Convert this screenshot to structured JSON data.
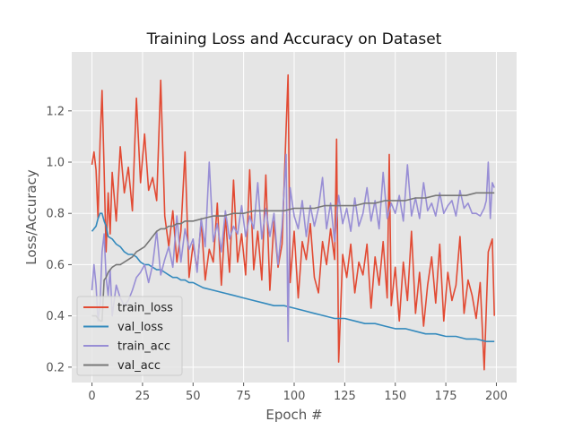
{
  "colors": {
    "background": "#ffffff",
    "plot_background": "#e5e5e5",
    "grid": "#ffffff",
    "train_loss": "#e24a33",
    "val_loss": "#348abd",
    "train_acc": "#988ed5",
    "val_acc": "#777777"
  },
  "chart_data": {
    "type": "line",
    "title": "Training Loss and Accuracy on Dataset",
    "xlabel": "Epoch #",
    "ylabel": "Loss/Accuracy",
    "xlim": [
      -10,
      210
    ],
    "ylim": [
      0.14,
      1.43
    ],
    "xticks": [
      0,
      25,
      50,
      75,
      100,
      125,
      150,
      175,
      200
    ],
    "yticks": [
      0.2,
      0.4,
      0.6,
      0.8,
      1.0,
      1.2
    ],
    "ytick_labels": [
      "0.2",
      "0.4",
      "0.6",
      "0.8",
      "1.0",
      "1.2"
    ],
    "grid": true,
    "legend_position": "lower-left",
    "series": [
      {
        "name": "train_loss",
        "color": "#e24a33",
        "x": [
          0,
          1,
          2,
          3,
          4,
          5,
          6,
          7,
          8,
          9,
          10,
          12,
          14,
          16,
          18,
          20,
          22,
          24,
          26,
          28,
          30,
          32,
          34,
          36,
          38,
          40,
          42,
          44,
          46,
          48,
          50,
          52,
          54,
          56,
          58,
          60,
          62,
          64,
          66,
          68,
          70,
          72,
          74,
          76,
          78,
          80,
          82,
          84,
          86,
          88,
          90,
          92,
          94,
          96,
          97,
          98,
          100,
          102,
          104,
          106,
          108,
          110,
          112,
          114,
          116,
          118,
          120,
          121,
          122,
          124,
          126,
          128,
          130,
          132,
          134,
          136,
          138,
          140,
          142,
          144,
          146,
          147,
          148,
          150,
          152,
          154,
          156,
          158,
          160,
          162,
          164,
          166,
          168,
          170,
          172,
          174,
          176,
          178,
          180,
          182,
          184,
          186,
          188,
          190,
          192,
          194,
          196,
          198,
          199
        ],
        "y": [
          0.99,
          1.04,
          0.97,
          0.78,
          1.08,
          1.28,
          0.97,
          0.65,
          0.88,
          0.72,
          0.96,
          0.77,
          1.06,
          0.88,
          0.98,
          0.81,
          1.25,
          0.92,
          1.11,
          0.89,
          0.94,
          0.85,
          1.32,
          0.79,
          0.67,
          0.81,
          0.61,
          0.73,
          1.04,
          0.55,
          0.68,
          0.58,
          0.77,
          0.54,
          0.66,
          0.61,
          0.84,
          0.52,
          0.79,
          0.57,
          0.93,
          0.61,
          0.72,
          0.56,
          0.97,
          0.58,
          0.73,
          0.54,
          0.95,
          0.5,
          0.77,
          0.59,
          0.68,
          1.13,
          1.34,
          0.53,
          0.73,
          0.47,
          0.69,
          0.62,
          0.76,
          0.55,
          0.49,
          0.69,
          0.6,
          0.74,
          0.62,
          1.09,
          0.22,
          0.64,
          0.55,
          0.68,
          0.49,
          0.61,
          0.56,
          0.68,
          0.43,
          0.63,
          0.52,
          0.69,
          0.47,
          1.03,
          0.44,
          0.59,
          0.38,
          0.61,
          0.46,
          0.73,
          0.41,
          0.57,
          0.36,
          0.52,
          0.63,
          0.45,
          0.68,
          0.38,
          0.57,
          0.46,
          0.52,
          0.71,
          0.41,
          0.54,
          0.48,
          0.39,
          0.53,
          0.19,
          0.65,
          0.7,
          0.4
        ]
      },
      {
        "name": "val_loss",
        "color": "#348abd",
        "x": [
          0,
          2,
          3,
          4,
          5,
          6,
          7,
          8,
          10,
          12,
          14,
          16,
          18,
          20,
          22,
          24,
          26,
          28,
          30,
          32,
          34,
          36,
          38,
          40,
          42,
          44,
          46,
          48,
          50,
          55,
          60,
          65,
          70,
          75,
          80,
          85,
          90,
          95,
          100,
          105,
          110,
          115,
          120,
          125,
          130,
          135,
          140,
          145,
          150,
          155,
          160,
          165,
          170,
          175,
          180,
          185,
          190,
          195,
          199
        ],
        "y": [
          0.73,
          0.75,
          0.78,
          0.8,
          0.8,
          0.77,
          0.75,
          0.71,
          0.7,
          0.68,
          0.67,
          0.65,
          0.64,
          0.64,
          0.63,
          0.61,
          0.6,
          0.6,
          0.59,
          0.58,
          0.58,
          0.57,
          0.56,
          0.55,
          0.55,
          0.54,
          0.54,
          0.53,
          0.53,
          0.51,
          0.5,
          0.49,
          0.48,
          0.47,
          0.46,
          0.45,
          0.44,
          0.44,
          0.43,
          0.42,
          0.41,
          0.4,
          0.39,
          0.39,
          0.38,
          0.37,
          0.37,
          0.36,
          0.35,
          0.35,
          0.34,
          0.33,
          0.33,
          0.32,
          0.32,
          0.31,
          0.31,
          0.3,
          0.3
        ]
      },
      {
        "name": "train_acc",
        "color": "#988ed5",
        "x": [
          0,
          1,
          2,
          3,
          4,
          5,
          6,
          7,
          8,
          9,
          10,
          12,
          14,
          16,
          18,
          20,
          22,
          24,
          26,
          28,
          30,
          32,
          34,
          36,
          38,
          40,
          42,
          44,
          46,
          48,
          50,
          52,
          54,
          56,
          58,
          60,
          62,
          64,
          66,
          68,
          70,
          72,
          74,
          76,
          78,
          80,
          82,
          84,
          86,
          88,
          90,
          92,
          94,
          96,
          97,
          98,
          100,
          102,
          104,
          106,
          108,
          110,
          112,
          114,
          116,
          118,
          120,
          122,
          124,
          126,
          128,
          130,
          132,
          134,
          136,
          138,
          140,
          142,
          144,
          146,
          148,
          150,
          152,
          154,
          156,
          158,
          160,
          162,
          164,
          166,
          168,
          170,
          172,
          174,
          176,
          178,
          180,
          182,
          184,
          186,
          188,
          190,
          192,
          194,
          195,
          196,
          197,
          198,
          199
        ],
        "y": [
          0.5,
          0.6,
          0.52,
          0.38,
          0.45,
          0.65,
          0.72,
          0.55,
          0.48,
          0.58,
          0.4,
          0.52,
          0.47,
          0.44,
          0.46,
          0.5,
          0.55,
          0.57,
          0.6,
          0.53,
          0.6,
          0.73,
          0.56,
          0.62,
          0.67,
          0.59,
          0.79,
          0.61,
          0.74,
          0.66,
          0.7,
          0.57,
          0.78,
          0.67,
          1.0,
          0.69,
          0.76,
          0.65,
          0.81,
          0.7,
          0.75,
          0.72,
          0.83,
          0.71,
          0.79,
          0.74,
          0.92,
          0.7,
          0.82,
          0.71,
          0.8,
          0.6,
          0.75,
          1.03,
          0.3,
          0.9,
          0.79,
          0.74,
          0.85,
          0.71,
          0.83,
          0.75,
          0.82,
          0.94,
          0.74,
          0.84,
          0.69,
          0.87,
          0.76,
          0.82,
          0.73,
          0.86,
          0.75,
          0.8,
          0.9,
          0.77,
          0.85,
          0.74,
          0.96,
          0.78,
          0.84,
          0.8,
          0.87,
          0.77,
          0.99,
          0.79,
          0.86,
          0.78,
          0.92,
          0.81,
          0.84,
          0.79,
          0.88,
          0.8,
          0.83,
          0.85,
          0.79,
          0.89,
          0.82,
          0.84,
          0.8,
          0.8,
          0.79,
          0.82,
          0.85,
          1.0,
          0.78,
          0.92,
          0.9
        ]
      },
      {
        "name": "val_acc",
        "color": "#777777",
        "x": [
          0,
          2,
          4,
          5,
          6,
          7,
          8,
          10,
          12,
          14,
          16,
          18,
          20,
          22,
          24,
          26,
          28,
          30,
          32,
          34,
          36,
          38,
          40,
          42,
          44,
          46,
          48,
          50,
          55,
          60,
          65,
          70,
          75,
          80,
          85,
          90,
          95,
          100,
          105,
          110,
          115,
          120,
          125,
          130,
          135,
          140,
          145,
          150,
          155,
          160,
          165,
          170,
          175,
          180,
          185,
          190,
          195,
          199
        ],
        "y": [
          0.4,
          0.4,
          0.38,
          0.38,
          0.54,
          0.55,
          0.57,
          0.59,
          0.6,
          0.6,
          0.61,
          0.62,
          0.63,
          0.65,
          0.66,
          0.67,
          0.69,
          0.71,
          0.73,
          0.74,
          0.74,
          0.75,
          0.75,
          0.76,
          0.76,
          0.77,
          0.77,
          0.77,
          0.78,
          0.79,
          0.79,
          0.8,
          0.8,
          0.81,
          0.81,
          0.81,
          0.81,
          0.82,
          0.82,
          0.82,
          0.83,
          0.83,
          0.83,
          0.83,
          0.84,
          0.84,
          0.85,
          0.85,
          0.85,
          0.86,
          0.86,
          0.87,
          0.87,
          0.87,
          0.87,
          0.88,
          0.88,
          0.88
        ]
      }
    ]
  }
}
